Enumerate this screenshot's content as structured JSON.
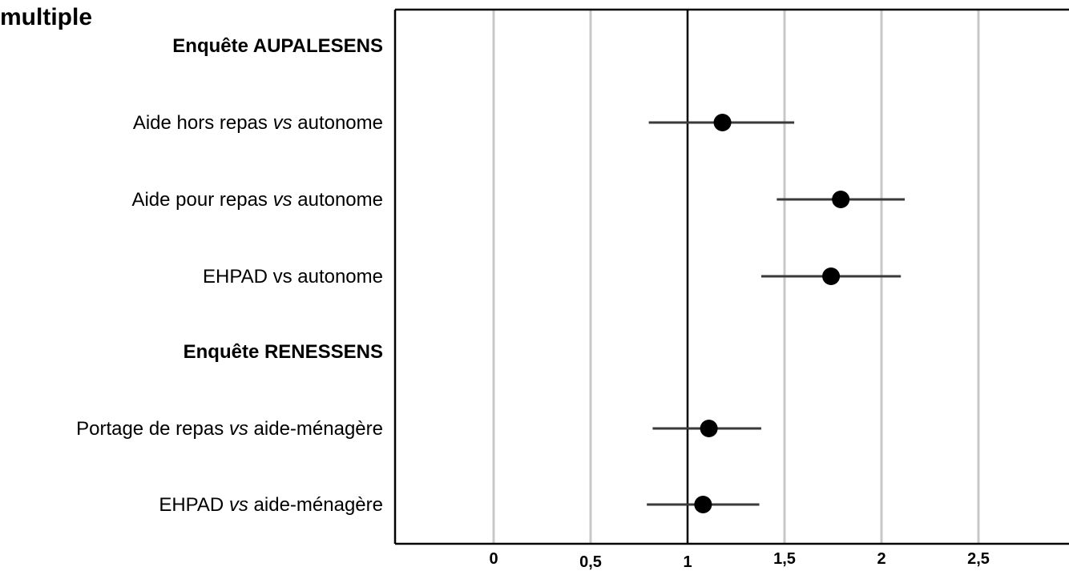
{
  "title": "multiple",
  "chart_data": {
    "type": "forest",
    "reference_line": 1,
    "xlim": [
      -0.5,
      3.0
    ],
    "xticks": [
      {
        "value": 0,
        "label": "0"
      },
      {
        "value": 0.5,
        "label": "0,5"
      },
      {
        "value": 1,
        "label": "1"
      },
      {
        "value": 1.5,
        "label": "1,5"
      },
      {
        "value": 2,
        "label": "2"
      },
      {
        "value": 2.5,
        "label": "2,5"
      }
    ],
    "grid": "vertical",
    "rows": [
      {
        "kind": "header",
        "label": "Enquête AUPALESENS"
      },
      {
        "kind": "point",
        "label_pre": "Aide hors repas ",
        "label_em": "vs",
        "label_post": " autonome",
        "estimate": 1.18,
        "ci_low": 0.8,
        "ci_high": 1.55
      },
      {
        "kind": "point",
        "label_pre": "Aide pour repas ",
        "label_em": "vs",
        "label_post": " autonome",
        "estimate": 1.79,
        "ci_low": 1.46,
        "ci_high": 2.12
      },
      {
        "kind": "point",
        "label_pre": "EHPAD vs autonome",
        "label_em": "",
        "label_post": "",
        "estimate": 1.74,
        "ci_low": 1.38,
        "ci_high": 2.1
      },
      {
        "kind": "header",
        "label": "Enquête RENESSENS"
      },
      {
        "kind": "point",
        "label_pre": "Portage de repas ",
        "label_em": "vs",
        "label_post": " aide-ménagère",
        "estimate": 1.11,
        "ci_low": 0.82,
        "ci_high": 1.38
      },
      {
        "kind": "point",
        "label_pre": "EHPAD ",
        "label_em": "vs",
        "label_post": " aide-ménagère",
        "estimate": 1.08,
        "ci_low": 0.79,
        "ci_high": 1.37
      }
    ]
  }
}
